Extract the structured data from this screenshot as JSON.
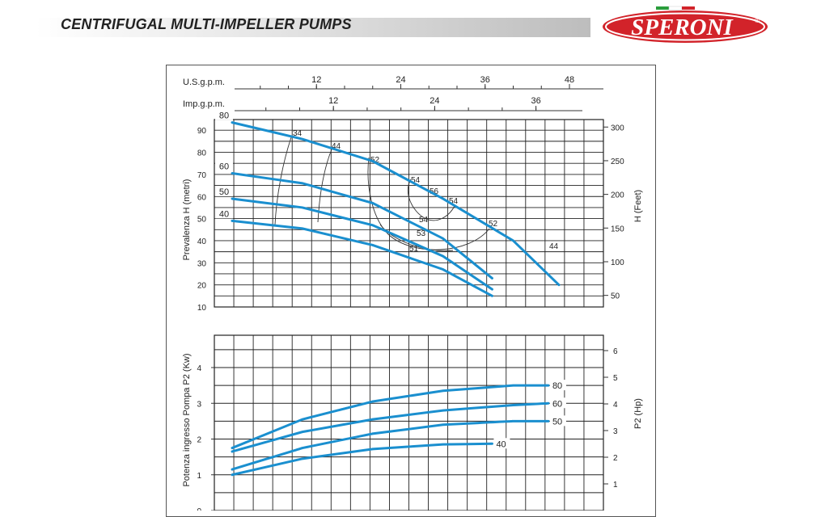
{
  "header": {
    "title": "CENTRIFUGAL MULTI-IMPELLER PUMPS",
    "brand": "SPERONI",
    "registered": "®",
    "brand_color": "#d2232a"
  },
  "chart_data": [
    {
      "type": "line",
      "title": "",
      "ylabel": "Prevalenza H (metri)",
      "ylabel_right": "H (Feet)",
      "x_top_label_1": "U.S.g.p.m.",
      "x_top_label_2": "Imp.g.p.m.",
      "x_usgpm_ticks": [
        "12",
        "24",
        "36",
        "48"
      ],
      "x_impgpm_ticks": [
        "12",
        "24",
        "36"
      ],
      "y_ticks": [
        "10",
        "20",
        "30",
        "40",
        "50",
        "60",
        "70",
        "80",
        "90"
      ],
      "y_right_ticks": [
        "50",
        "100",
        "150",
        "200",
        "250",
        "300"
      ],
      "ylim": [
        10,
        95
      ],
      "xlim_usgpm": [
        0,
        51
      ],
      "grid": true,
      "series_color": "#1a8fcf",
      "series": [
        {
          "name": "80",
          "x": [
            0,
            10,
            20,
            30,
            40,
            46.5
          ],
          "y": [
            93.5,
            86,
            76,
            59,
            40,
            20
          ]
        },
        {
          "name": "60",
          "x": [
            0,
            10,
            20,
            30,
            37
          ],
          "y": [
            70.5,
            66,
            57,
            41,
            23
          ]
        },
        {
          "name": "50",
          "x": [
            0,
            10,
            20,
            30,
            37
          ],
          "y": [
            59,
            55,
            47,
            33,
            18
          ]
        },
        {
          "name": "40",
          "x": [
            0,
            10,
            20,
            30,
            37
          ],
          "y": [
            49,
            45.5,
            38,
            27,
            15
          ]
        }
      ],
      "efficiency_labels": [
        "34",
        "44",
        "52",
        "54",
        "56",
        "54",
        "54",
        "53",
        "51",
        "52",
        "44"
      ]
    },
    {
      "type": "line",
      "title": "",
      "ylabel": "Potenza ingresso Pompa P2 (Kw)",
      "ylabel_right": "P2 (Hp)",
      "y_ticks": [
        "0",
        "1",
        "2",
        "3",
        "4"
      ],
      "y_right_ticks": [
        "1",
        "2",
        "3",
        "4",
        "5",
        "6"
      ],
      "ylim": [
        0,
        4.7
      ],
      "xlim_usgpm": [
        0,
        51
      ],
      "grid": true,
      "series_color": "#1a8fcf",
      "series": [
        {
          "name": "80",
          "x": [
            0,
            10,
            20,
            30,
            40,
            45
          ],
          "y": [
            1.75,
            2.55,
            3.05,
            3.35,
            3.5,
            3.5
          ]
        },
        {
          "name": "60",
          "x": [
            0,
            10,
            20,
            30,
            40,
            45
          ],
          "y": [
            1.65,
            2.2,
            2.55,
            2.8,
            2.95,
            3.0
          ]
        },
        {
          "name": "50",
          "x": [
            0,
            10,
            20,
            30,
            40,
            45
          ],
          "y": [
            1.15,
            1.75,
            2.15,
            2.4,
            2.5,
            2.5
          ]
        },
        {
          "name": "40",
          "x": [
            0,
            10,
            20,
            30,
            37
          ],
          "y": [
            1.0,
            1.45,
            1.72,
            1.85,
            1.87
          ]
        }
      ]
    }
  ]
}
